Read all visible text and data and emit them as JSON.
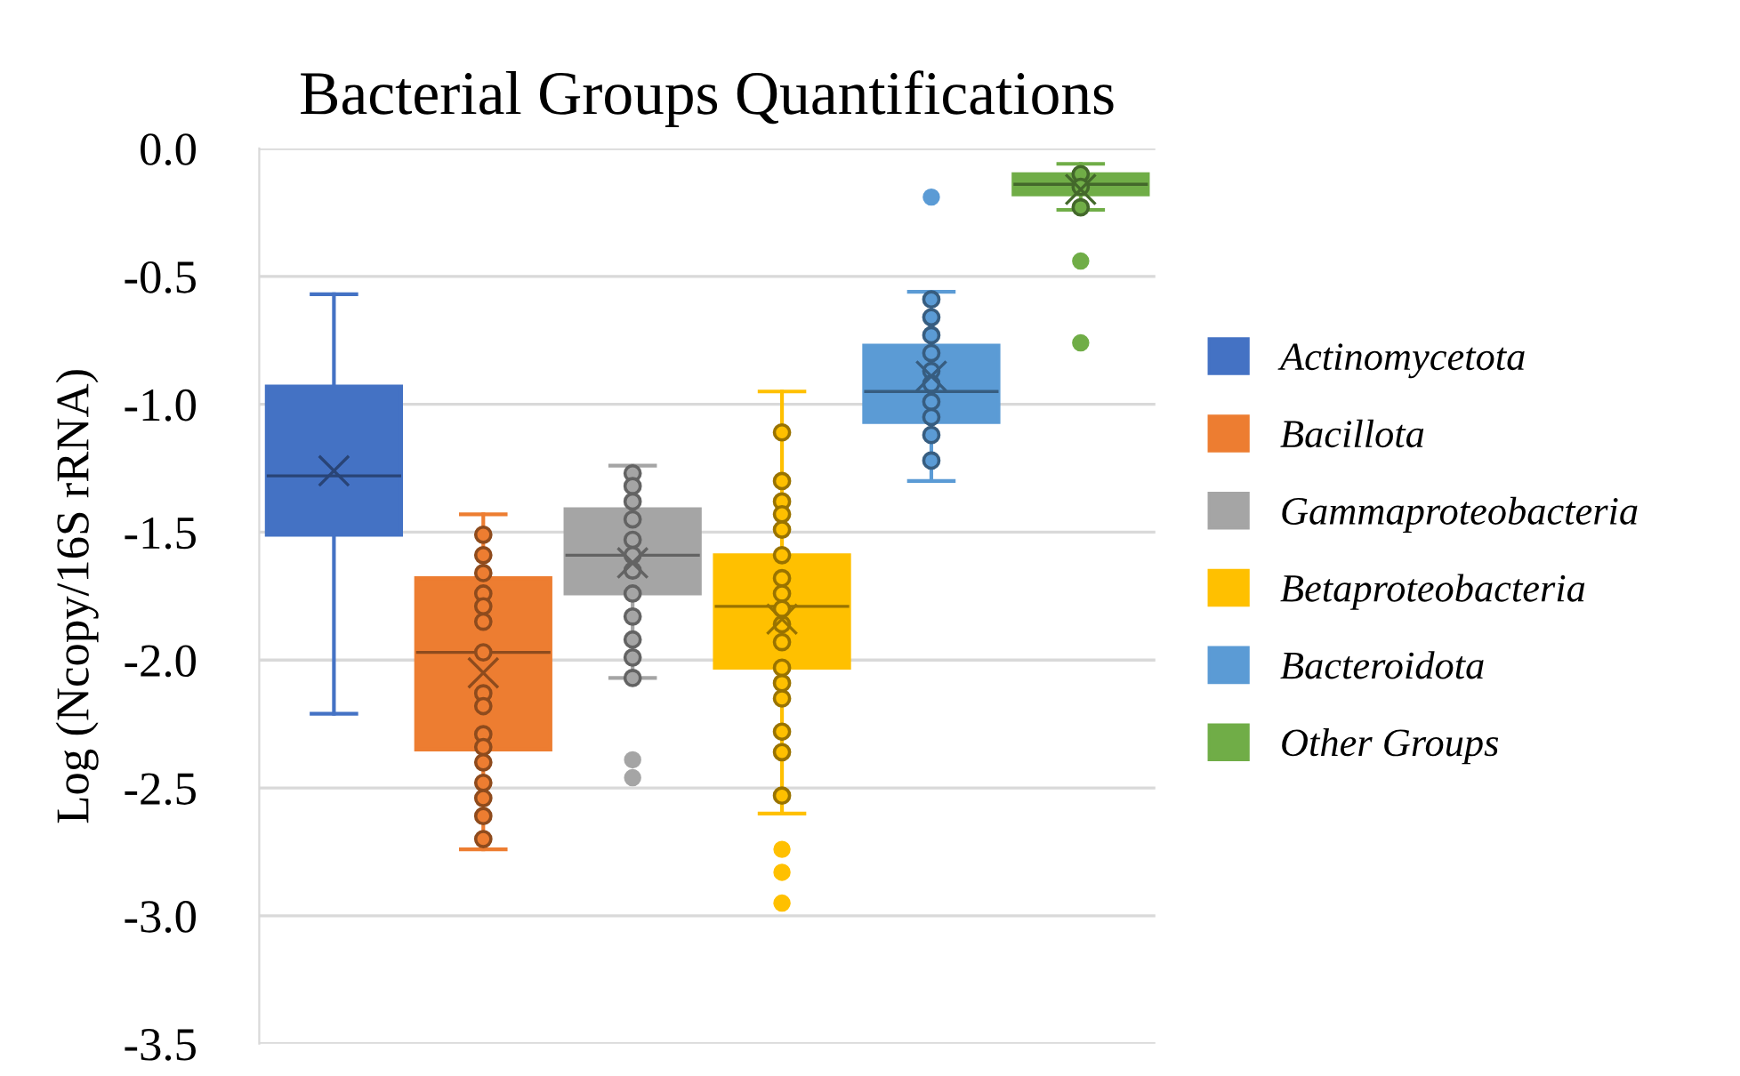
{
  "chart_data": {
    "type": "box",
    "title": "Bacterial Groups Quantifications",
    "ylabel": "Log (Ncopy/16S rRNA)",
    "categories": [
      null,
      null,
      null,
      null,
      null,
      null
    ],
    "ylim": [
      -3.5,
      0.0
    ],
    "yticks": [
      {
        "value": 0.0,
        "label": "0.0"
      },
      {
        "value": -0.5,
        "label": "-0.5"
      },
      {
        "value": -1.0,
        "label": "-1.0"
      },
      {
        "value": -1.5,
        "label": "-1.5"
      },
      {
        "value": -2.0,
        "label": "-2.0"
      },
      {
        "value": -2.5,
        "label": "-2.5"
      },
      {
        "value": -3.0,
        "label": "-3.0"
      },
      {
        "value": -3.5,
        "label": "-3.5"
      }
    ],
    "grid": "y",
    "legend": "right",
    "tick_labels": "y",
    "marker": "circle",
    "series": [
      {
        "name": "Actinomycetota",
        "color": "#4472c4",
        "boxes": [
          {
            "low": -2.21,
            "q1": -1.51,
            "median": -1.28,
            "q3": -0.93,
            "high": -0.57,
            "mean": -1.26
          },
          null,
          null,
          null,
          null,
          null
        ]
      },
      {
        "name": "Bacillota",
        "color": "#ed7d31",
        "boxes": [
          null,
          {
            "low": -2.74,
            "q1": -2.35,
            "median": -1.97,
            "q3": -1.68,
            "high": -1.43,
            "mean": -2.05
          },
          null,
          null,
          null,
          null
        ]
      },
      {
        "name": "Gammaproteobacteria",
        "color": "#a5a5a5",
        "boxes": [
          null,
          null,
          {
            "low": -2.07,
            "q1": -1.74,
            "median": -1.59,
            "q3": -1.41,
            "high": -1.24,
            "mean": -1.62,
            "outliers": [
              -2.39,
              -2.46
            ]
          },
          null,
          null,
          null
        ]
      },
      {
        "name": "Betaproteobacteria",
        "color": "#ffc000",
        "boxes": [
          null,
          null,
          null,
          {
            "low": -2.6,
            "q1": -2.03,
            "median": -1.79,
            "q3": -1.59,
            "high": -0.95,
            "mean": -1.84,
            "outliers": [
              -2.74,
              -2.83,
              -2.95
            ]
          },
          null,
          null
        ]
      },
      {
        "name": "Bacteroidota",
        "color": "#5b9bd5",
        "boxes": [
          null,
          null,
          null,
          null,
          {
            "low": -1.3,
            "q1": -1.07,
            "median": -0.95,
            "q3": -0.77,
            "high": -0.56,
            "mean": -0.89,
            "outliers": [
              -0.19
            ]
          },
          null
        ]
      },
      {
        "name": "Other Groups",
        "color": "#70ad47",
        "boxes": [
          null,
          null,
          null,
          null,
          null,
          {
            "low": -0.24,
            "q1": -0.18,
            "median": -0.14,
            "q3": -0.1,
            "high": -0.06,
            "mean": -0.16,
            "outliers": [
              -0.44,
              -0.76
            ]
          }
        ]
      },
      {
        "type": "scatter",
        "colors": [
          "#4472c4",
          "#ed7d31",
          "#a5a5a5",
          "#ffc000",
          "#5b9bd5",
          "#70ad47"
        ],
        "values": [
          null,
          -1.51,
          -1.27,
          -1.11,
          -0.59,
          -0.1
        ]
      },
      {
        "type": "scatter",
        "colors": [
          "#4472c4",
          "#ed7d31",
          "#a5a5a5",
          "#ffc000",
          "#5b9bd5",
          "#70ad47"
        ],
        "values": [
          null,
          -1.59,
          -1.32,
          -1.3,
          -0.66,
          -0.15
        ]
      },
      {
        "type": "scatter",
        "colors": [
          "#4472c4",
          "#ed7d31",
          "#a5a5a5",
          "#ffc000",
          "#5b9bd5",
          "#70ad47"
        ],
        "values": [
          null,
          -1.66,
          -1.38,
          -1.38,
          -0.73,
          -0.23
        ]
      },
      {
        "type": "scatter",
        "colors": [
          "#4472c4",
          "#ed7d31",
          "#a5a5a5",
          "#ffc000",
          "#5b9bd5",
          "#70ad47"
        ],
        "values": [
          null,
          -1.74,
          -1.45,
          -1.43,
          -0.8,
          null
        ]
      },
      {
        "type": "scatter",
        "colors": [
          "#4472c4",
          "#ed7d31",
          "#a5a5a5",
          "#ffc000",
          "#5b9bd5",
          "#70ad47"
        ],
        "values": [
          null,
          -1.79,
          -1.53,
          -1.49,
          -0.87,
          null
        ]
      },
      {
        "type": "scatter",
        "colors": [
          "#4472c4",
          "#ed7d31",
          "#a5a5a5",
          "#ffc000",
          "#5b9bd5",
          "#70ad47"
        ],
        "values": [
          null,
          -1.85,
          -1.59,
          -1.59,
          -0.92,
          null
        ]
      },
      {
        "type": "scatter",
        "colors": [
          "#4472c4",
          "#ed7d31",
          "#a5a5a5",
          "#ffc000",
          "#5b9bd5",
          "#70ad47"
        ],
        "values": [
          null,
          -1.97,
          -1.65,
          -1.68,
          -0.99,
          null
        ]
      },
      {
        "type": "scatter",
        "colors": [
          "#4472c4",
          "#ed7d31",
          "#a5a5a5",
          "#ffc000",
          "#5b9bd5",
          "#70ad47"
        ],
        "values": [
          null,
          -2.13,
          -1.74,
          -1.74,
          -1.05,
          null
        ]
      },
      {
        "type": "scatter",
        "colors": [
          "#4472c4",
          "#ed7d31",
          "#a5a5a5",
          "#ffc000",
          "#5b9bd5",
          "#70ad47"
        ],
        "values": [
          null,
          -2.18,
          -1.83,
          -1.8,
          -1.12,
          null
        ]
      },
      {
        "type": "scatter",
        "colors": [
          "#4472c4",
          "#ed7d31",
          "#a5a5a5",
          "#ffc000",
          "#5b9bd5",
          "#70ad47"
        ],
        "values": [
          null,
          -2.29,
          -1.92,
          -1.86,
          -1.22,
          null
        ]
      },
      {
        "type": "scatter",
        "colors": [
          "#4472c4",
          "#ed7d31",
          "#a5a5a5",
          "#ffc000",
          "#5b9bd5",
          "#70ad47"
        ],
        "values": [
          null,
          -2.34,
          -1.99,
          -1.93,
          null,
          null
        ]
      },
      {
        "type": "scatter",
        "colors": [
          "#4472c4",
          "#ed7d31",
          "#a5a5a5",
          "#ffc000",
          "#5b9bd5",
          "#70ad47"
        ],
        "values": [
          null,
          -2.4,
          -2.07,
          -2.03,
          null,
          null
        ]
      },
      {
        "type": "scatter",
        "colors": [
          "#4472c4",
          "#ed7d31",
          "#a5a5a5",
          "#ffc000",
          "#5b9bd5",
          "#70ad47"
        ],
        "values": [
          null,
          -2.48,
          null,
          -2.09,
          null,
          null
        ]
      },
      {
        "type": "scatter",
        "colors": [
          "#4472c4",
          "#ed7d31",
          "#a5a5a5",
          "#ffc000",
          "#5b9bd5",
          "#70ad47"
        ],
        "values": [
          null,
          -2.54,
          null,
          -2.15,
          null,
          null
        ]
      },
      {
        "type": "scatter",
        "colors": [
          "#4472c4",
          "#ed7d31",
          "#a5a5a5",
          "#ffc000",
          "#5b9bd5",
          "#70ad47"
        ],
        "values": [
          null,
          -2.61,
          null,
          -2.28,
          null,
          null
        ]
      },
      {
        "type": "scatter",
        "colors": [
          "#4472c4",
          "#ed7d31",
          "#a5a5a5",
          "#ffc000",
          "#5b9bd5",
          "#70ad47"
        ],
        "values": [
          null,
          -2.7,
          null,
          -2.36,
          null,
          null
        ]
      },
      {
        "type": "scatter",
        "colors": [
          "#4472c4",
          "#ed7d31",
          "#a5a5a5",
          "#ffc000",
          "#5b9bd5",
          "#70ad47"
        ],
        "values": [
          null,
          null,
          null,
          -2.53,
          null,
          null
        ]
      }
    ]
  }
}
